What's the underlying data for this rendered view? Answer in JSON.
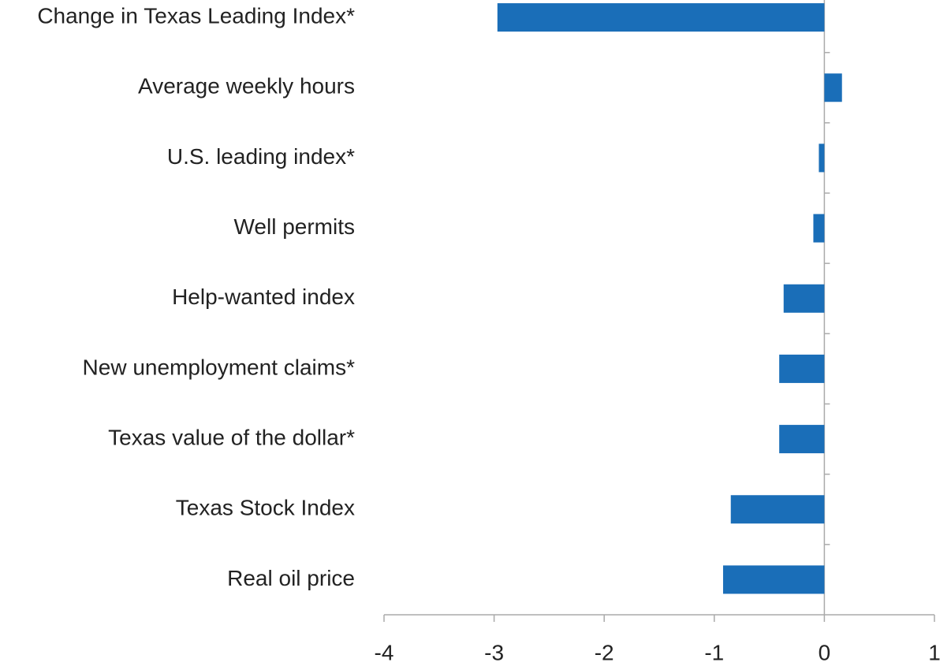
{
  "chart_data": {
    "type": "hbar",
    "categories": [
      "Change in Texas Leading Index*",
      "Average weekly hours",
      "U.S. leading index*",
      "Well permits",
      "Help-wanted index",
      "New unemployment claims*",
      "Texas value of the dollar*",
      "Texas Stock Index",
      "Real oil price"
    ],
    "values": [
      -2.97,
      0.16,
      -0.05,
      -0.1,
      -0.37,
      -0.41,
      -0.41,
      -0.85,
      -0.92
    ],
    "color": "#1a6eb8",
    "xlim": [
      -4,
      1
    ],
    "xticks": [
      -4,
      -3,
      -2,
      -1,
      0,
      1
    ],
    "grid": false
  }
}
